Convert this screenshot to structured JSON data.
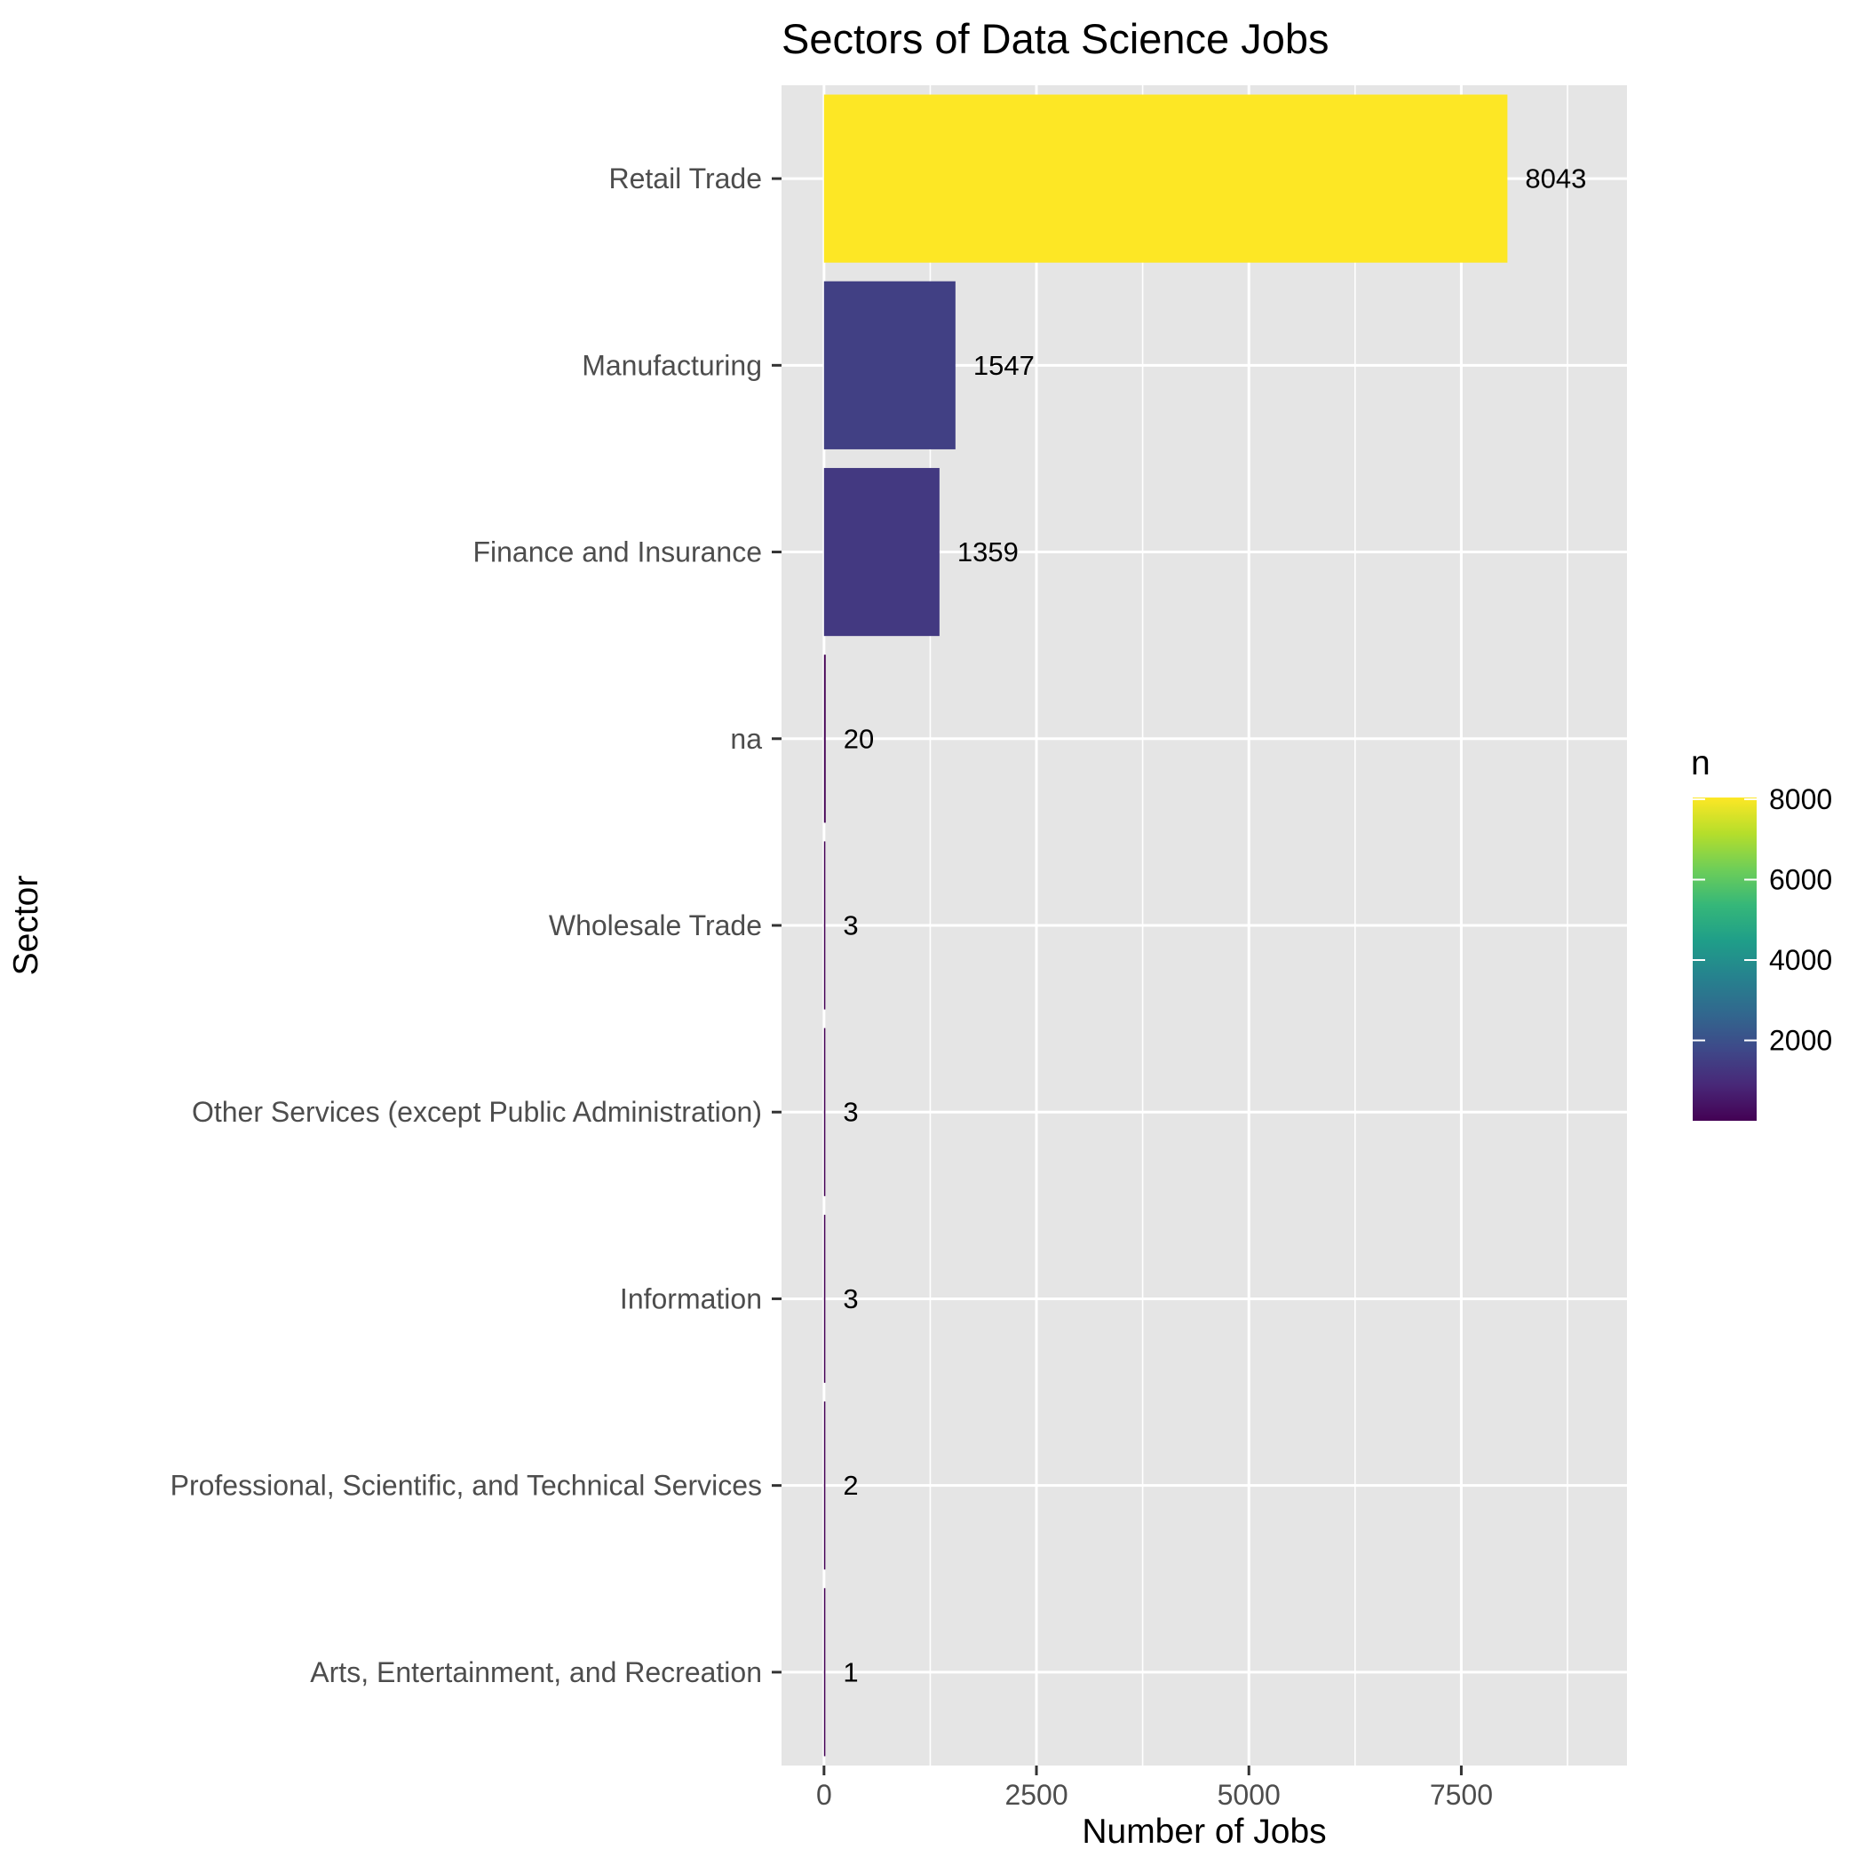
{
  "chart_data": {
    "type": "bar",
    "orientation": "horizontal",
    "title": "Sectors of Data Science Jobs",
    "xlabel": "Number of Jobs",
    "ylabel": "Sector",
    "categories": [
      "Retail Trade",
      "Manufacturing",
      "Finance and Insurance",
      "na",
      "Wholesale Trade",
      "Other Services (except Public Administration)",
      "Information",
      "Professional, Scientific, and Technical Services",
      "Arts, Entertainment, and Recreation"
    ],
    "values": [
      8043,
      1547,
      1359,
      20,
      3,
      3,
      3,
      2,
      1
    ],
    "data_labels": [
      "8043",
      "1547",
      "1359",
      "20",
      "3",
      "3",
      "3",
      "2",
      "1"
    ],
    "xlim": [
      -500,
      9450
    ],
    "x_ticks": [
      0,
      2500,
      5000,
      7500
    ],
    "x_tick_labels": [
      "0",
      "2500",
      "5000",
      "7500"
    ],
    "grid": true,
    "legend": {
      "title": "n",
      "placement": "right",
      "colormap": "viridis",
      "range": [
        1,
        8043
      ],
      "ticks": [
        2000,
        4000,
        6000,
        8000
      ],
      "tick_labels": [
        "2000",
        "4000",
        "6000",
        "8000"
      ]
    },
    "colors": {
      "panel_background": "#e5e5e5",
      "grid": "#ffffff",
      "viridis": [
        "#440154",
        "#482878",
        "#3e4989",
        "#31688e",
        "#26828e",
        "#1f9e89",
        "#35b779",
        "#6ece58",
        "#b5de2b",
        "#fde725"
      ]
    }
  }
}
